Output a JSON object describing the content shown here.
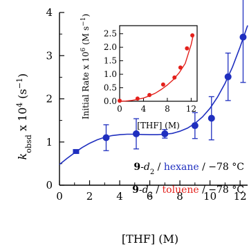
{
  "chart_data": [
    {
      "type": "scatter",
      "panel": "main",
      "xlabel": "[THF] (M)",
      "ylabel_parts": {
        "base": "k",
        "sub": "obsd",
        "mid": " x 10",
        "sup": "4",
        "unit_open": " (s",
        "unit_sup": "−1",
        "unit_close": ")"
      },
      "xlim": [
        0,
        12.5
      ],
      "ylim": [
        0,
        4
      ],
      "xticks": [
        0,
        2,
        4,
        6,
        8,
        10,
        12
      ],
      "yticks": [
        0,
        1,
        2,
        3,
        4
      ],
      "series": [
        {
          "color": "#1f2fbf",
          "x": [
            1.1,
            3.1,
            5.1,
            7.0,
            9.0,
            10.1,
            11.2,
            12.2
          ],
          "y": [
            0.78,
            1.1,
            1.19,
            1.19,
            1.38,
            1.55,
            2.51,
            3.43
          ],
          "yerr": [
            0.04,
            0.3,
            0.35,
            0.1,
            0.3,
            0.5,
            0.55,
            1.05
          ]
        }
      ],
      "fit_curve": {
        "color": "#1f2fbf",
        "x": [
          0,
          0.5,
          1,
          1.5,
          2,
          2.5,
          3,
          3.5,
          4,
          4.5,
          5,
          5.5,
          6,
          6.5,
          7,
          7.5,
          8,
          8.5,
          9,
          9.5,
          10,
          10.5,
          11,
          11.5,
          12,
          12.5
        ],
        "y": [
          0.48,
          0.62,
          0.75,
          0.87,
          0.97,
          1.05,
          1.11,
          1.15,
          1.17,
          1.18,
          1.18,
          1.175,
          1.17,
          1.17,
          1.18,
          1.2,
          1.25,
          1.32,
          1.43,
          1.58,
          1.78,
          2.04,
          2.36,
          2.74,
          3.2,
          3.7
        ]
      },
      "legend": [
        {
          "bold": "9",
          "text": "-",
          "italic": "d",
          "sub": "2",
          "sep1": " / ",
          "solvent": "hexane",
          "solvent_color": "#1f2fbf",
          "sep2": " / −78 °C"
        },
        {
          "bold": "9",
          "text": "-",
          "italic": "d",
          "sub": "2",
          "sep1": " / ",
          "solvent": "toluene",
          "solvent_color": "#e3201b",
          "sep2": " / −78 °C"
        }
      ]
    },
    {
      "type": "scatter",
      "panel": "inset",
      "xlabel": "[THF] (M)",
      "ylabel_parts": {
        "base": "Initial Rate x 10",
        "sup": "6",
        "unit_open": " (M s",
        "unit_sup": "−1",
        "unit_close": ")"
      },
      "xlim": [
        0,
        13
      ],
      "ylim": [
        0,
        2.8
      ],
      "xticks": [
        0,
        4,
        8,
        12
      ],
      "yticks": [
        0.0,
        0.5,
        1.0,
        1.5,
        2.0,
        2.5
      ],
      "ytick_labels": [
        "0.0",
        "0.5",
        "1.0",
        "1.5",
        "2.0",
        "2.5"
      ],
      "series": [
        {
          "color": "#e3201b",
          "x": [
            0,
            3,
            5,
            7.3,
            9.2,
            10.2,
            11.3,
            12.2
          ],
          "y": [
            0.02,
            0.1,
            0.23,
            0.62,
            0.88,
            1.25,
            1.96,
            2.44
          ]
        }
      ],
      "fit_curve": {
        "color": "#e3201b",
        "x": [
          0,
          1,
          2,
          3,
          4,
          5,
          6,
          7,
          8,
          9,
          10,
          11,
          12,
          12.4
        ],
        "y": [
          0.0,
          0.008,
          0.03,
          0.07,
          0.12,
          0.2,
          0.3,
          0.44,
          0.6,
          0.8,
          1.06,
          1.4,
          2.1,
          2.5
        ]
      }
    }
  ]
}
